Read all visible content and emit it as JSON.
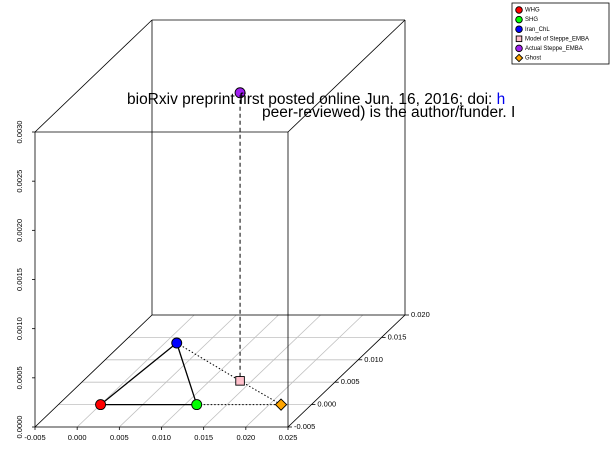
{
  "chart_data": {
    "type": "scatter3d",
    "watermark": {
      "line1": "bioRxiv preprint first posted online Jun. 16, 2016; doi:",
      "line1_link": "h",
      "line2": "peer-reviewed) is the author/funder. I"
    },
    "series": [
      {
        "name": "WHG",
        "color": "#ff0000",
        "marker": "circle",
        "x": [
          0.0
        ],
        "y": [
          0.0
        ],
        "z": [
          0.0
        ]
      },
      {
        "name": "SHG",
        "color": "#00ff00",
        "marker": "circle",
        "x": [
          0.0114
        ],
        "y": [
          0.0
        ],
        "z": [
          0.0
        ]
      },
      {
        "name": "Iran_ChL",
        "color": "#0000ff",
        "marker": "circle",
        "x": [
          0.0014
        ],
        "y": [
          0.01375
        ],
        "z": [
          0.0
        ]
      },
      {
        "name": "Model of Steppe_EMBA",
        "color": "#ffc0cb",
        "marker": "square",
        "x": [
          0.0136
        ],
        "y": [
          0.0053
        ],
        "z": [
          0.0
        ]
      },
      {
        "name": "Actual Steppe_EMBA",
        "color": "#a020f0",
        "marker": "circle",
        "x": [
          0.0136
        ],
        "y": [
          0.0053
        ],
        "z": [
          0.00293
        ]
      },
      {
        "name": "Ghost",
        "color": "#ffa500",
        "marker": "diamond",
        "x": [
          0.0214
        ],
        "y": [
          0.0
        ],
        "z": [
          0.0
        ]
      }
    ],
    "xlim": [
      -0.005,
      0.025
    ],
    "xticks": [
      -0.005,
      {
        "value": 0,
        "label": "0.000"
      },
      0.005,
      {
        "value": 0.01,
        "label": "0.010"
      },
      0.015,
      {
        "value": 0.02,
        "label": "0.020"
      },
      0.025
    ],
    "ylim": [
      -0.005,
      0.02
    ],
    "yticks": [
      -0.005,
      {
        "value": 0,
        "label": "0.000"
      },
      0.005,
      {
        "value": 0.01,
        "label": "0.010"
      },
      0.015,
      {
        "value": 0.02,
        "label": "0.020"
      }
    ],
    "zlim": [
      0,
      0.003
    ],
    "zticks": [
      {
        "value": 0,
        "label": "0.0000"
      },
      0.0005,
      {
        "value": 0.001,
        "label": "0.0010"
      },
      0.0015,
      {
        "value": 0.002,
        "label": "0.0020"
      },
      0.0025,
      {
        "value": 0.003,
        "label": "0.0030"
      }
    ],
    "grid": true,
    "legend_position": "top-right"
  }
}
